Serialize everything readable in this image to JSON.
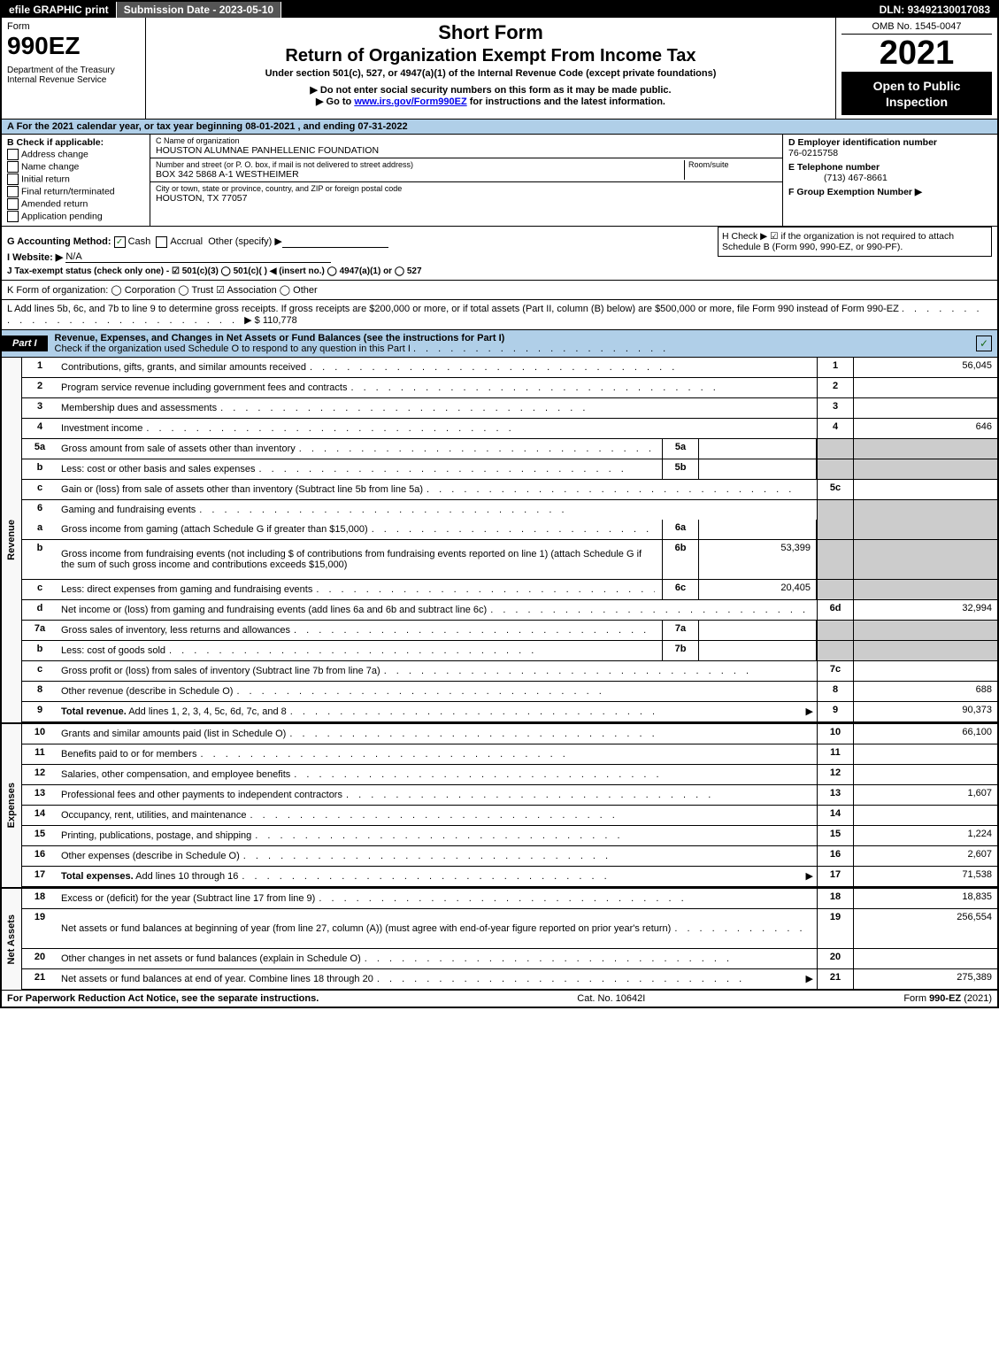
{
  "topbar": {
    "efile": "efile GRAPHIC print",
    "submission": "Submission Date - 2023-05-10",
    "dln": "DLN: 93492130017083"
  },
  "header": {
    "form_word": "Form",
    "form_num": "990EZ",
    "dept": "Department of the Treasury\nInternal Revenue Service",
    "short": "Short Form",
    "title": "Return of Organization Exempt From Income Tax",
    "sub1": "Under section 501(c), 527, or 4947(a)(1) of the Internal Revenue Code (except private foundations)",
    "sub2": "▶ Do not enter social security numbers on this form as it may be made public.",
    "sub3_pre": "▶ Go to ",
    "sub3_link": "www.irs.gov/Form990EZ",
    "sub3_post": " for instructions and the latest information.",
    "omb": "OMB No. 1545-0047",
    "year": "2021",
    "open": "Open to Public Inspection"
  },
  "row_a": "A  For the 2021 calendar year, or tax year beginning 08-01-2021 , and ending 07-31-2022",
  "col_b": {
    "label": "B  Check if applicable:",
    "opts": [
      "Address change",
      "Name change",
      "Initial return",
      "Final return/terminated",
      "Amended return",
      "Application pending"
    ]
  },
  "col_c": {
    "name_lbl": "C Name of organization",
    "name": "HOUSTON ALUMNAE PANHELLENIC FOUNDATION",
    "street_lbl": "Number and street (or P. O. box, if mail is not delivered to street address)",
    "room_lbl": "Room/suite",
    "street": "BOX 342 5868 A-1 WESTHEIMER",
    "city_lbl": "City or town, state or province, country, and ZIP or foreign postal code",
    "city": "HOUSTON, TX  77057"
  },
  "col_d": {
    "ein_lbl": "D Employer identification number",
    "ein": "76-0215758",
    "tel_lbl": "E Telephone number",
    "tel": "(713) 467-8661",
    "grp_lbl": "F Group Exemption Number ▶"
  },
  "g": {
    "method": "G Accounting Method:",
    "cash": "Cash",
    "accrual": "Accrual",
    "other": "Other (specify) ▶",
    "website_lbl": "I Website: ▶",
    "website": "N/A",
    "j": "J Tax-exempt status (check only one) -  ☑ 501(c)(3)  ◯ 501(c)(  ) ◀ (insert no.)  ◯ 4947(a)(1) or  ◯ 527"
  },
  "h": "H  Check ▶ ☑ if the organization is not required to attach Schedule B (Form 990, 990-EZ, or 990-PF).",
  "k": "K Form of organization:   ◯ Corporation   ◯ Trust   ☑ Association   ◯ Other",
  "l": {
    "text": "L Add lines 5b, 6c, and 7b to line 9 to determine gross receipts. If gross receipts are $200,000 or more, or if total assets (Part II, column (B) below) are $500,000 or more, file Form 990 instead of Form 990-EZ",
    "amount": "▶ $ 110,778"
  },
  "part1": {
    "tab": "Part I",
    "title": "Revenue, Expenses, and Changes in Net Assets or Fund Balances (see the instructions for Part I)",
    "sub": "Check if the organization used Schedule O to respond to any question in this Part I",
    "checked": "✓"
  },
  "vtabs": [
    "Revenue",
    "Expenses",
    "Net Assets"
  ],
  "rows": [
    {
      "n": "1",
      "d": "Contributions, gifts, grants, and similar amounts received",
      "rn": "1",
      "rv": "56,045"
    },
    {
      "n": "2",
      "d": "Program service revenue including government fees and contracts",
      "rn": "2",
      "rv": ""
    },
    {
      "n": "3",
      "d": "Membership dues and assessments",
      "rn": "3",
      "rv": ""
    },
    {
      "n": "4",
      "d": "Investment income",
      "rn": "4",
      "rv": "646"
    },
    {
      "n": "5a",
      "d": "Gross amount from sale of assets other than inventory",
      "mn": "5a",
      "mv": "",
      "grey": true
    },
    {
      "n": "b",
      "d": "Less: cost or other basis and sales expenses",
      "mn": "5b",
      "mv": "",
      "grey": true
    },
    {
      "n": "c",
      "d": "Gain or (loss) from sale of assets other than inventory (Subtract line 5b from line 5a)",
      "rn": "5c",
      "rv": ""
    },
    {
      "n": "6",
      "d": "Gaming and fundraising events",
      "grey": true,
      "noborder": true
    },
    {
      "n": "a",
      "d": "Gross income from gaming (attach Schedule G if greater than $15,000)",
      "mn": "6a",
      "mv": "",
      "grey": true
    },
    {
      "n": "b",
      "d": "Gross income from fundraising events (not including $                    of contributions from fundraising events reported on line 1) (attach Schedule G if the sum of such gross income and contributions exceeds $15,000)",
      "mn": "6b",
      "mv": "53,399",
      "grey": true,
      "tall": true
    },
    {
      "n": "c",
      "d": "Less: direct expenses from gaming and fundraising events",
      "mn": "6c",
      "mv": "20,405",
      "grey": true
    },
    {
      "n": "d",
      "d": "Net income or (loss) from gaming and fundraising events (add lines 6a and 6b and subtract line 6c)",
      "rn": "6d",
      "rv": "32,994"
    },
    {
      "n": "7a",
      "d": "Gross sales of inventory, less returns and allowances",
      "mn": "7a",
      "mv": "",
      "grey": true
    },
    {
      "n": "b",
      "d": "Less: cost of goods sold",
      "mn": "7b",
      "mv": "",
      "grey": true
    },
    {
      "n": "c",
      "d": "Gross profit or (loss) from sales of inventory (Subtract line 7b from line 7a)",
      "rn": "7c",
      "rv": ""
    },
    {
      "n": "8",
      "d": "Other revenue (describe in Schedule O)",
      "rn": "8",
      "rv": "688"
    },
    {
      "n": "9",
      "d": "Total revenue. Add lines 1, 2, 3, 4, 5c, 6d, 7c, and 8",
      "rn": "9",
      "rv": "90,373",
      "bold": true,
      "arrow": true
    }
  ],
  "exp_rows": [
    {
      "n": "10",
      "d": "Grants and similar amounts paid (list in Schedule O)",
      "rn": "10",
      "rv": "66,100"
    },
    {
      "n": "11",
      "d": "Benefits paid to or for members",
      "rn": "11",
      "rv": ""
    },
    {
      "n": "12",
      "d": "Salaries, other compensation, and employee benefits",
      "rn": "12",
      "rv": ""
    },
    {
      "n": "13",
      "d": "Professional fees and other payments to independent contractors",
      "rn": "13",
      "rv": "1,607"
    },
    {
      "n": "14",
      "d": "Occupancy, rent, utilities, and maintenance",
      "rn": "14",
      "rv": ""
    },
    {
      "n": "15",
      "d": "Printing, publications, postage, and shipping",
      "rn": "15",
      "rv": "1,224"
    },
    {
      "n": "16",
      "d": "Other expenses (describe in Schedule O)",
      "rn": "16",
      "rv": "2,607"
    },
    {
      "n": "17",
      "d": "Total expenses. Add lines 10 through 16",
      "rn": "17",
      "rv": "71,538",
      "bold": true,
      "arrow": true
    }
  ],
  "net_rows": [
    {
      "n": "18",
      "d": "Excess or (deficit) for the year (Subtract line 17 from line 9)",
      "rn": "18",
      "rv": "18,835"
    },
    {
      "n": "19",
      "d": "Net assets or fund balances at beginning of year (from line 27, column (A)) (must agree with end-of-year figure reported on prior year's return)",
      "rn": "19",
      "rv": "256,554",
      "tall": true
    },
    {
      "n": "20",
      "d": "Other changes in net assets or fund balances (explain in Schedule O)",
      "rn": "20",
      "rv": ""
    },
    {
      "n": "21",
      "d": "Net assets or fund balances at end of year. Combine lines 18 through 20",
      "rn": "21",
      "rv": "275,389",
      "arrow": true
    }
  ],
  "footer": {
    "left": "For Paperwork Reduction Act Notice, see the separate instructions.",
    "mid": "Cat. No. 10642I",
    "right": "Form 990-EZ (2021)"
  }
}
